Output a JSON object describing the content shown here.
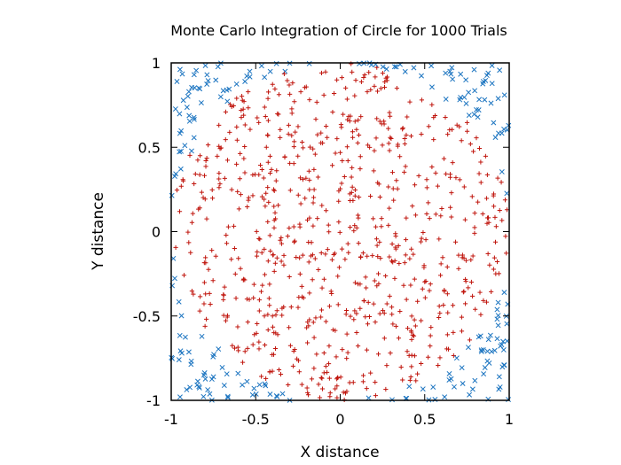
{
  "chart_data": {
    "type": "scatter",
    "title": "Monte Carlo Integration of Circle for 1000 Trials",
    "xlabel": "X distance",
    "ylabel": "Y distance",
    "xlim": [
      -1,
      1
    ],
    "ylim": [
      -1,
      1
    ],
    "x_ticks": [
      -1,
      -0.5,
      0,
      0.5,
      1
    ],
    "x_tick_labels": [
      "-1",
      "-0.5",
      "0",
      "0.5",
      "1"
    ],
    "y_ticks": [
      -1,
      -0.5,
      0,
      0.5,
      1
    ],
    "y_tick_labels": [
      "-1",
      "-0.5",
      "0",
      "0.5",
      "1"
    ],
    "grid": false,
    "legend": "none",
    "trials": 1000,
    "series": [
      {
        "marker": "plus",
        "color": "#c0160e",
        "region": "inside unit circle (x²+y² ≤ 1)",
        "count_approx": 785
      },
      {
        "marker": "cross",
        "color": "#1b74c0",
        "region": "outside unit circle (x²+y² > 1)",
        "count_approx": 215
      }
    ]
  }
}
